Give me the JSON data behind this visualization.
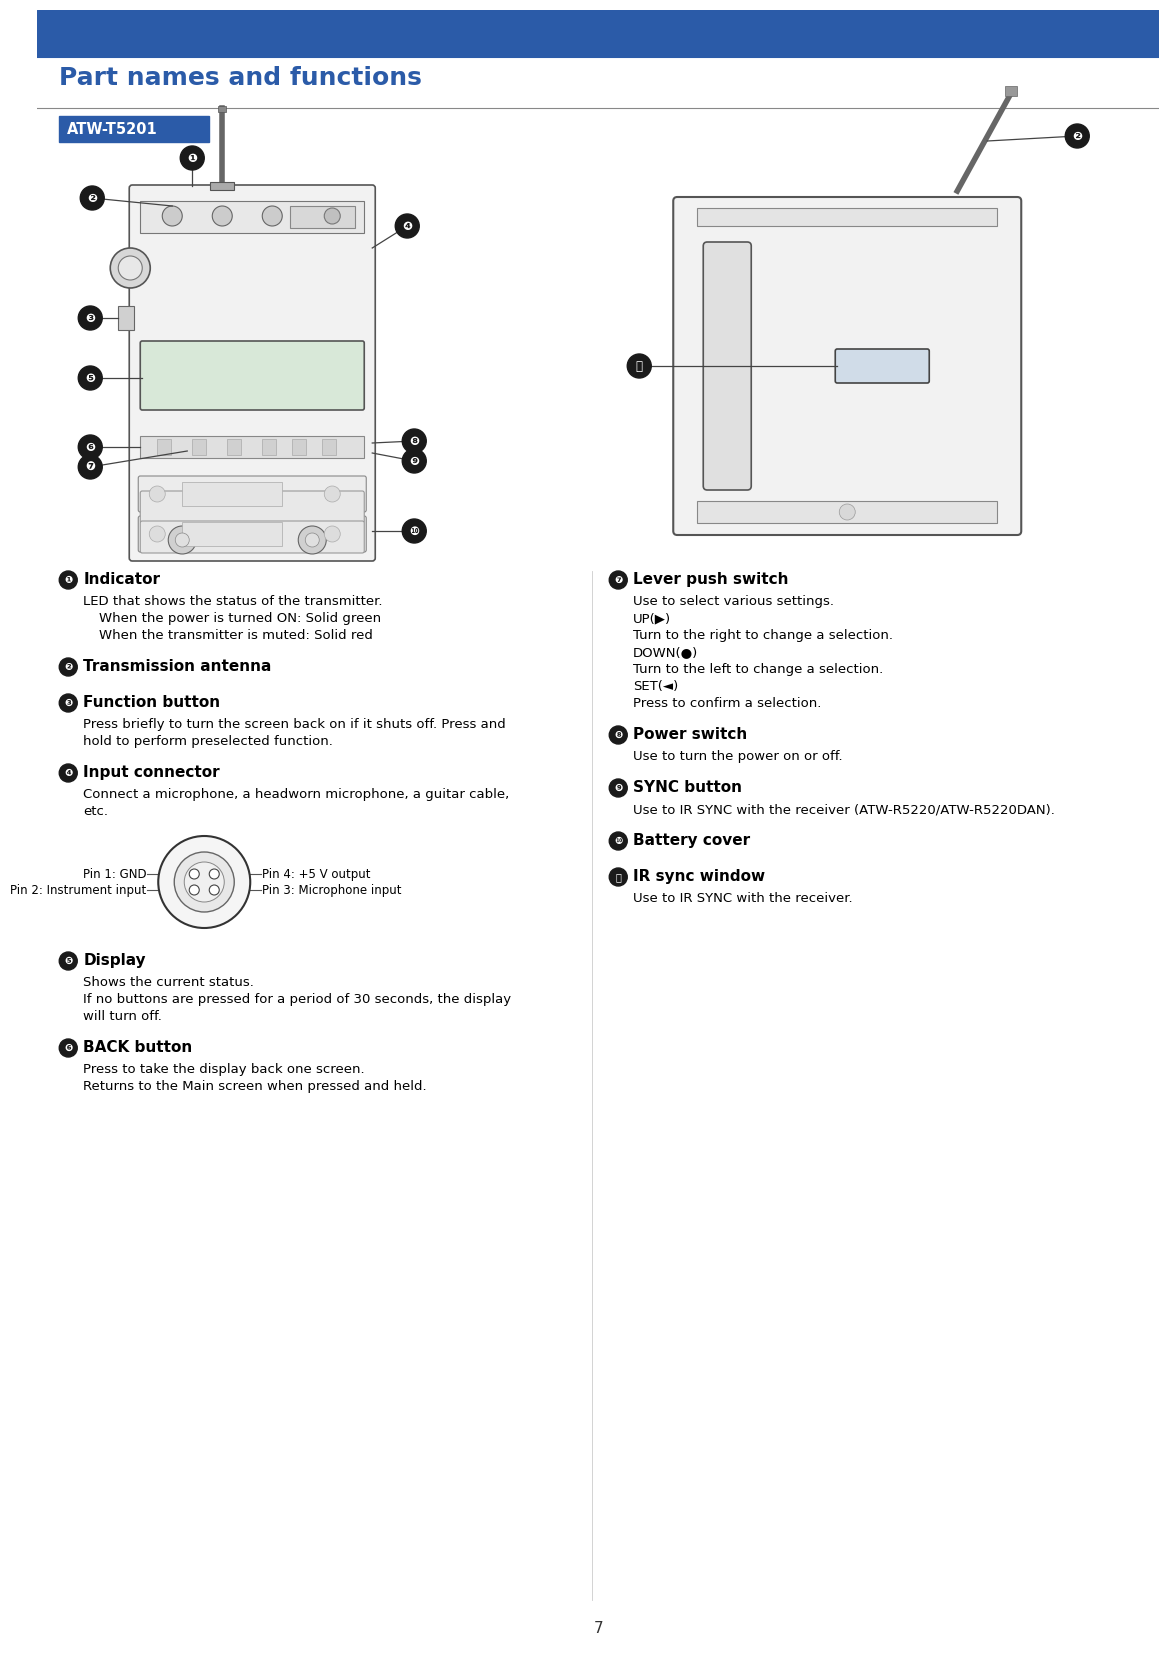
{
  "page_num": "7",
  "top_bar_color": "#2B5BA8",
  "title": "Part names and functions",
  "title_color": "#2B5BA8",
  "title_fontsize": 18,
  "section_label": "ATW-T5201",
  "section_label_color": "#ffffff",
  "section_bg_color": "#2B5BA8",
  "body_bg": "#ffffff",
  "items_left": [
    {
      "num": "❶",
      "title": "Indicator",
      "lines": [
        {
          "text": "LED that shows the status of the transmitter.",
          "indent": 0
        },
        {
          "text": "When the power is turned ON: Solid green",
          "indent": 16
        },
        {
          "text": "When the transmitter is muted: Solid red",
          "indent": 16
        }
      ]
    },
    {
      "num": "❷",
      "title": "Transmission antenna",
      "lines": []
    },
    {
      "num": "❸",
      "title": "Function button",
      "lines": [
        {
          "text": "Press briefly to turn the screen back on if it shuts off. Press and",
          "indent": 0
        },
        {
          "text": "hold to perform preselected function.",
          "indent": 0
        }
      ]
    },
    {
      "num": "❹",
      "title": "Input connector",
      "lines": [
        {
          "text": "Connect a microphone, a headworn microphone, a guitar cable,",
          "indent": 0
        },
        {
          "text": "etc.",
          "indent": 0
        },
        {
          "text": "[CONNECTOR]",
          "indent": 0
        }
      ]
    },
    {
      "num": "❺",
      "title": "Display",
      "lines": [
        {
          "text": "Shows the current status.",
          "indent": 0
        },
        {
          "text": "If no buttons are pressed for a period of 30 seconds, the display",
          "indent": 0
        },
        {
          "text": "will turn off.",
          "indent": 0
        }
      ]
    },
    {
      "num": "❻",
      "title": "BACK button",
      "lines": [
        {
          "text": "Press to take the display back one screen.",
          "indent": 0
        },
        {
          "text": "Returns to the Main screen when pressed and held.",
          "indent": 0
        }
      ]
    }
  ],
  "items_right": [
    {
      "num": "❼",
      "title": "Lever push switch",
      "lines": [
        {
          "text": "Use to select various settings.",
          "indent": 0
        },
        {
          "text": "UP(▶)",
          "indent": 0
        },
        {
          "text": "Turn to the right to change a selection.",
          "indent": 0
        },
        {
          "text": "DOWN(●)",
          "indent": 0
        },
        {
          "text": "Turn to the left to change a selection.",
          "indent": 0
        },
        {
          "text": "SET(◄)",
          "indent": 0
        },
        {
          "text": "Press to confirm a selection.",
          "indent": 0
        }
      ]
    },
    {
      "num": "❽",
      "title": "Power switch",
      "lines": [
        {
          "text": "Use to turn the power on or off.",
          "indent": 0
        }
      ]
    },
    {
      "num": "❾",
      "title": "SYNC button",
      "lines": [
        {
          "text": "Use to IR SYNC with the receiver (ATW-R5220/ATW-R5220DAN).",
          "indent": 0
        }
      ]
    },
    {
      "num": "❿",
      "title": "Battery cover",
      "lines": []
    },
    {
      "num": "⓪",
      "title": "IR sync window",
      "lines": [
        {
          "text": "Use to IR SYNC with the receiver.",
          "indent": 0
        }
      ]
    }
  ],
  "connector_labels": [
    {
      "text": "Pin 1: GND",
      "side": "left",
      "row": 0
    },
    {
      "text": "Pin 2: Instrument input",
      "side": "left",
      "row": 1
    },
    {
      "text": "Pin 4: +5 V output",
      "side": "right",
      "row": 0
    },
    {
      "text": "Pin 3: Microphone input",
      "side": "right",
      "row": 1
    }
  ]
}
